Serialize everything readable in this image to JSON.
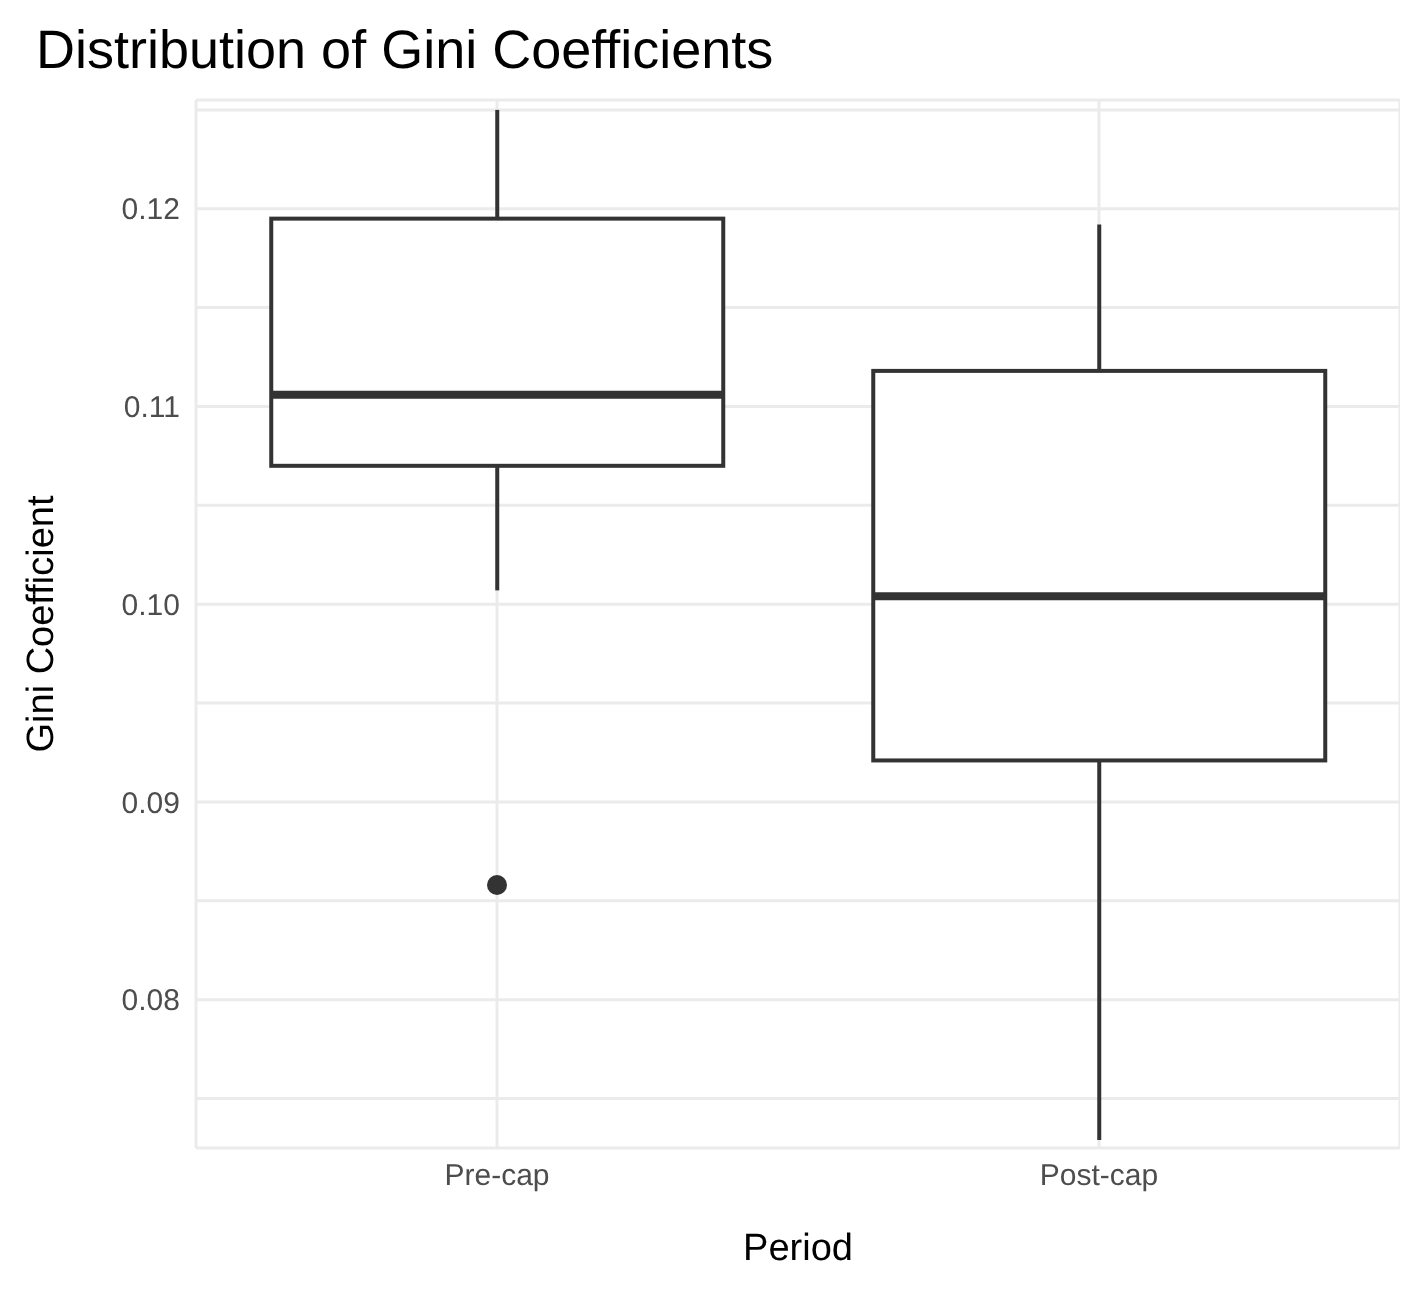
{
  "chart_data": {
    "type": "box",
    "title": "Distribution of Gini Coefficients",
    "xlabel": "Period",
    "ylabel": "Gini Coefficient",
    "categories": [
      "Pre-cap",
      "Post-cap"
    ],
    "boxes": [
      {
        "low": 0.1007,
        "q1": 0.107,
        "median": 0.1106,
        "q3": 0.1195,
        "high": 0.125,
        "outliers": [
          0.0858
        ]
      },
      {
        "low": 0.0729,
        "q1": 0.0921,
        "median": 0.1004,
        "q3": 0.1118,
        "high": 0.1192
      }
    ],
    "color": "#333333",
    "ylim": [
      0.0725,
      0.1255
    ],
    "yticks": [
      {
        "value": 0.075,
        "label": null
      },
      0.08,
      {
        "value": 0.085,
        "label": null
      },
      {
        "value": 0.09,
        "label": "0.09"
      },
      {
        "value": 0.095,
        "label": null
      },
      {
        "value": 0.1,
        "label": "0.10"
      },
      {
        "value": 0.105,
        "label": null
      },
      {
        "value": 0.11,
        "label": "0.11"
      },
      {
        "value": 0.115,
        "label": null
      },
      {
        "value": 0.12,
        "label": "0.12"
      },
      {
        "value": 0.125,
        "label": null
      }
    ],
    "grid": true
  }
}
